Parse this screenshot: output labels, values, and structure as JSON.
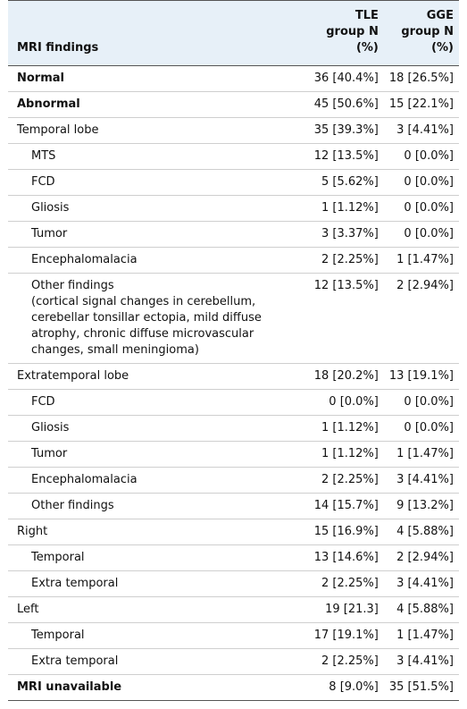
{
  "header": {
    "columns": [
      "MRI findings",
      "TLE group N (%)",
      "GGE group N (%)"
    ]
  },
  "table": {
    "rows": [
      [
        "Normal",
        "36 [40.4%]",
        "18 [26.5%]"
      ],
      [
        "Abnormal",
        "45 [50.6%]",
        "15 [22.1%]"
      ],
      [
        "Temporal lobe",
        "35 [39.3%]",
        "3 [4.41%]"
      ],
      [
        "MTS",
        "12 [13.5%]",
        "0 [0.0%]"
      ],
      [
        "FCD",
        "5 [5.62%]",
        "0 [0.0%]"
      ],
      [
        "Gliosis",
        "1 [1.12%]",
        "0 [0.0%]"
      ],
      [
        "Tumor",
        "3 [3.37%]",
        "0 [0.0%]"
      ],
      [
        "Encephalomalacia",
        "2 [2.25%]",
        "1 [1.47%]"
      ],
      [
        "Other findings",
        "12 [13.5%]",
        "2 [2.94%]",
        "(cortical signal changes in cerebellum, cerebellar tonsillar ectopia, mild diffuse atrophy, chronic diffuse microvascular changes, small meningioma)"
      ],
      [
        "Extratemporal lobe",
        "18 [20.2%]",
        "13 [19.1%]"
      ],
      [
        "FCD",
        "0 [0.0%]",
        "0 [0.0%]"
      ],
      [
        "Gliosis",
        "1 [1.12%]",
        "0 [0.0%]"
      ],
      [
        "Tumor",
        "1 [1.12%]",
        "1 [1.47%]"
      ],
      [
        "Encephalomalacia",
        "2 [2.25%]",
        "3 [4.41%]"
      ],
      [
        "Other findings",
        "14 [15.7%]",
        "9 [13.2%]"
      ],
      [
        "Right",
        "15 [16.9%]",
        "4 [5.88%]"
      ],
      [
        "Temporal",
        "13 [14.6%]",
        "2 [2.94%]"
      ],
      [
        "Extra temporal",
        "2 [2.25%]",
        "3 [4.41%]"
      ],
      [
        "Left",
        "19 [21.3]",
        "4 [5.88%]"
      ],
      [
        "Temporal",
        "17 [19.1%]",
        "1 [1.47%]"
      ],
      [
        "Extra temporal",
        "2 [2.25%]",
        "3 [4.41%]"
      ],
      [
        "MRI unavailable",
        "8 [9.0%]",
        "35 [51.5%]"
      ]
    ]
  }
}
